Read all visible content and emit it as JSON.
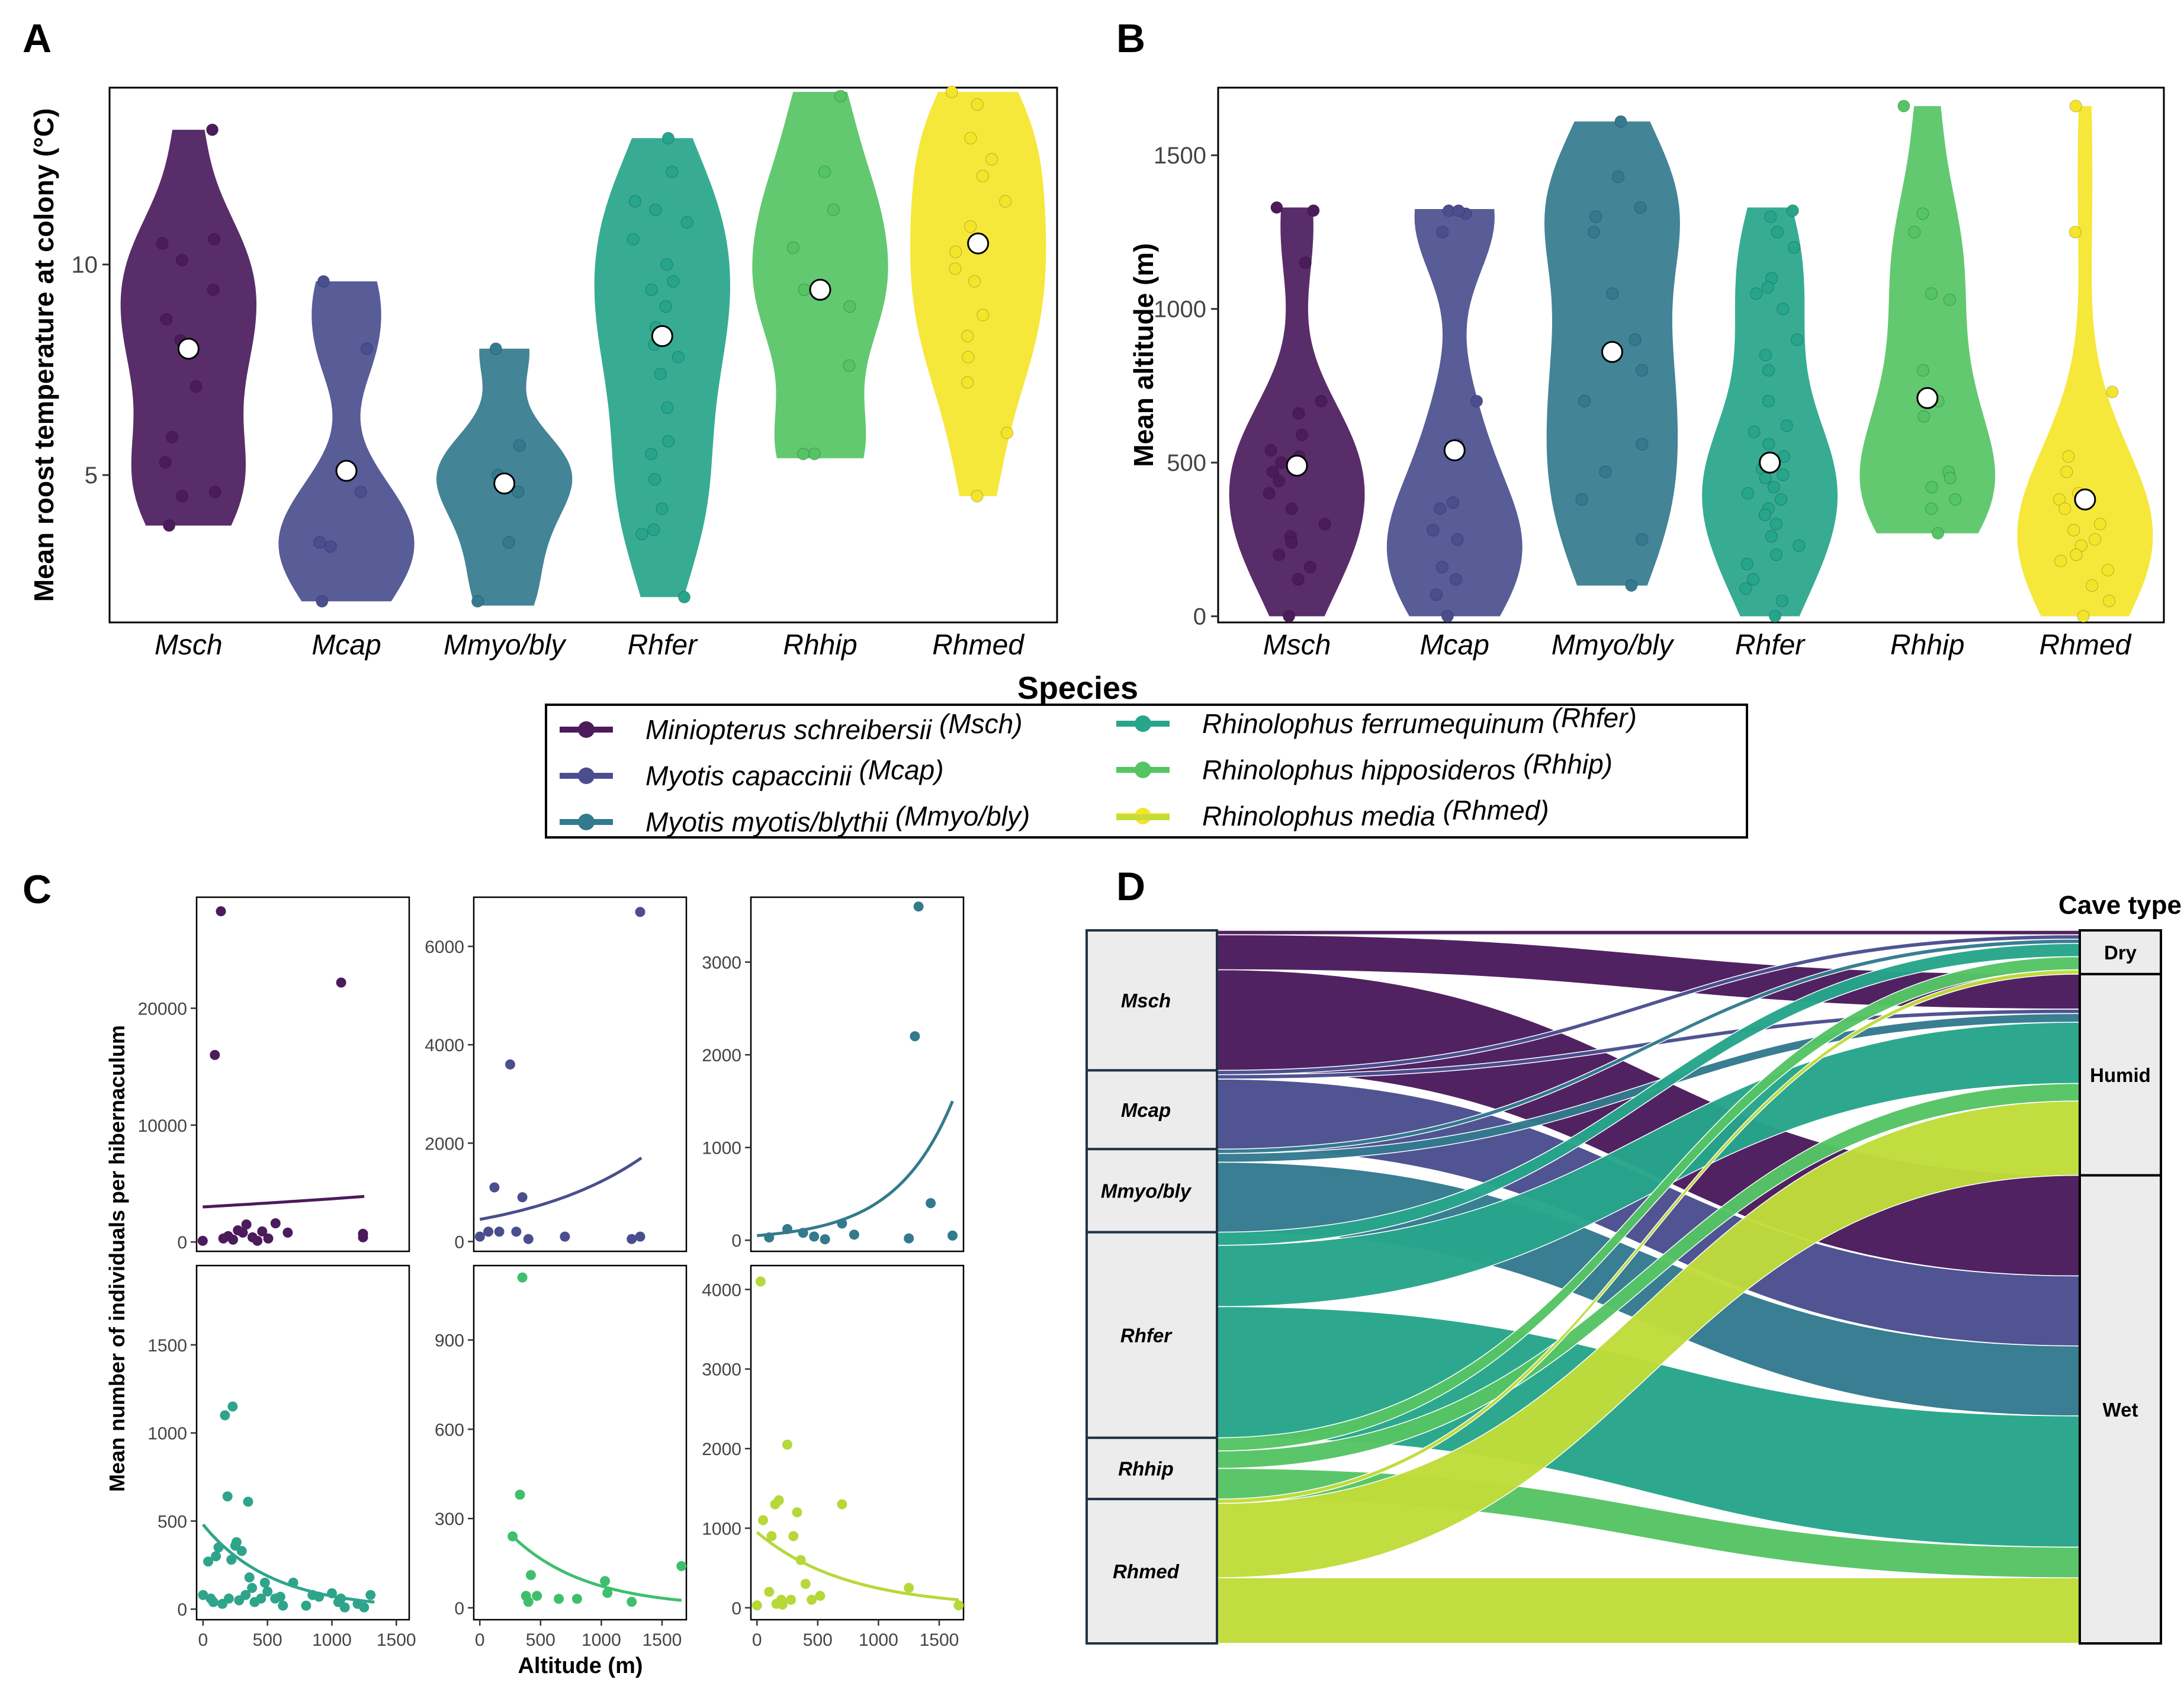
{
  "species": [
    {
      "code": "Msch",
      "full": "Miniopterus schreibersii",
      "legend_code": "(Msch)",
      "color": "#4b1b5c"
    },
    {
      "code": "Mcap",
      "full": "Myotis capaccinii",
      "legend_code": "(Mcap)",
      "color": "#4a4e8e"
    },
    {
      "code": "Mmyo/bly",
      "full": "Myotis myotis/blythii",
      "legend_code": "(Mmyo/bly)",
      "color": "#337a8e"
    },
    {
      "code": "Rhfer",
      "full": "Rhinolophus ferrumequinum",
      "legend_code": "(Rhfer)",
      "color": "#26a58a"
    },
    {
      "code": "Rhhip",
      "full": "Rhinolophus hipposideros",
      "legend_code": "(Rhhip)",
      "color": "#55c464"
    },
    {
      "code": "Rhmed",
      "full": "Rhinolophus media",
      "legend_code": "(Rhmed)",
      "color": "#f5e52a"
    }
  ],
  "legend": {
    "title": "Species"
  },
  "panel_labels": {
    "a": "A",
    "b": "B",
    "c": "C",
    "d": "D"
  },
  "chart_data": [
    {
      "id": "A",
      "type": "violin",
      "ylabel": "Mean roost temperature at colony (°C)",
      "xlabel": "",
      "ylim": [
        1.5,
        14.2
      ],
      "yticks": [
        5,
        10
      ],
      "categories": [
        "Msch",
        "Mcap",
        "Mmyo/bly",
        "Rhfer",
        "Rhhip",
        "Rhmed"
      ],
      "ranges": [
        [
          3.8,
          13.2
        ],
        [
          2.0,
          9.6
        ],
        [
          1.9,
          8.0
        ],
        [
          2.1,
          13.0
        ],
        [
          5.4,
          14.1
        ],
        [
          4.5,
          14.1
        ]
      ],
      "means": [
        8.0,
        5.1,
        4.8,
        8.3,
        9.4,
        10.5
      ],
      "points": [
        [
          13.2,
          10.6,
          10.5,
          10.1,
          9.4,
          8.7,
          8.2,
          8.0,
          7.1,
          5.9,
          5.3,
          4.6,
          4.5,
          3.8
        ],
        [
          9.6,
          8.0,
          4.6,
          3.4,
          3.3,
          2.0
        ],
        [
          8.0,
          5.7,
          5.0,
          4.6,
          3.4,
          2.0
        ],
        [
          13.0,
          12.2,
          11.5,
          11.3,
          11.0,
          10.6,
          10.0,
          9.6,
          9.4,
          9.0,
          8.5,
          8.1,
          7.8,
          7.4,
          6.6,
          5.8,
          5.5,
          4.9,
          4.2,
          3.7,
          3.6,
          2.1
        ],
        [
          14.0,
          12.2,
          11.3,
          10.4,
          9.4,
          9.0,
          7.6,
          5.5,
          5.5
        ],
        [
          14.1,
          13.8,
          13.0,
          12.5,
          12.1,
          11.5,
          10.9,
          10.3,
          9.9,
          9.6,
          8.8,
          8.3,
          7.8,
          7.2,
          6.0,
          4.5
        ]
      ]
    },
    {
      "id": "B",
      "type": "violin",
      "ylabel": "Mean altitude (m)",
      "xlabel": "",
      "ylim": [
        -20,
        1720
      ],
      "yticks": [
        0,
        500,
        1000,
        1500
      ],
      "categories": [
        "Msch",
        "Mcap",
        "Mmyo/bly",
        "Rhfer",
        "Rhhip",
        "Rhmed"
      ],
      "ranges": [
        [
          0,
          1330
        ],
        [
          0,
          1325
        ],
        [
          100,
          1610
        ],
        [
          0,
          1330
        ],
        [
          270,
          1660
        ],
        [
          0,
          1660
        ]
      ],
      "means": [
        490,
        540,
        860,
        500,
        710,
        380
      ],
      "points": [
        [
          1330,
          1320,
          1150,
          700,
          660,
          590,
          540,
          520,
          500,
          470,
          440,
          400,
          350,
          300,
          260,
          240,
          200,
          160,
          120,
          0
        ],
        [
          1320,
          1310,
          1250,
          1320,
          700,
          560,
          370,
          350,
          280,
          250,
          160,
          120,
          70,
          0
        ],
        [
          1610,
          1430,
          1330,
          1300,
          1250,
          1050,
          900,
          800,
          700,
          560,
          470,
          380,
          250,
          100
        ],
        [
          1320,
          1300,
          1250,
          1200,
          1100,
          1070,
          1050,
          1000,
          900,
          850,
          800,
          700,
          620,
          600,
          560,
          520,
          500,
          480,
          460,
          450,
          420,
          400,
          380,
          350,
          330,
          300,
          260,
          230,
          200,
          170,
          120,
          90,
          50,
          0
        ],
        [
          1660,
          1310,
          1250,
          1050,
          1030,
          800,
          700,
          650,
          470,
          450,
          420,
          380,
          350,
          270
        ],
        [
          1660,
          1250,
          730,
          520,
          470,
          400,
          380,
          350,
          300,
          280,
          250,
          230,
          200,
          180,
          150,
          100,
          50,
          0
        ]
      ]
    },
    {
      "id": "C",
      "type": "scatter",
      "xlabel": "Altitude (m)",
      "ylabel": "Mean number of individuals per hibernaculum",
      "panels": [
        {
          "species": "Msch",
          "xlim": [
            -50,
            1700
          ],
          "ylim": [
            -800,
            29500
          ],
          "yticks": [
            0,
            10000,
            20000
          ],
          "ytick_labels": [
            "0",
            "10000",
            "20000"
          ],
          "x": [
            0,
            100,
            150,
            170,
            210,
            250,
            290,
            330,
            360,
            410,
            450,
            490,
            540,
            600,
            700,
            1140,
            1320,
            1320
          ],
          "y": [
            100,
            16000,
            28300,
            300,
            500,
            200,
            1000,
            800,
            1500,
            400,
            100,
            900,
            300,
            1600,
            800,
            22200,
            700,
            400
          ],
          "fit": {
            "x": [
              0,
              1330
            ],
            "y": [
              3000,
              3900
            ]
          }
        },
        {
          "species": "Mcap",
          "xlim": [
            -50,
            1700
          ],
          "ylim": [
            -200,
            7000
          ],
          "yticks": [
            0,
            2000,
            4000,
            6000
          ],
          "ytick_labels": [
            "0",
            "2000",
            "4000",
            "6000"
          ],
          "x": [
            0,
            70,
            120,
            160,
            250,
            300,
            350,
            400,
            700,
            1250,
            1320,
            1320
          ],
          "y": [
            100,
            200,
            1100,
            200,
            3600,
            200,
            900,
            50,
            100,
            50,
            100,
            6700
          ],
          "fit": {
            "x": [
              0,
              1330
            ],
            "y": [
              450,
              1700
            ]
          }
        },
        {
          "species": "Mmyo/bly",
          "xlim": [
            -50,
            1700
          ],
          "ylim": [
            -120,
            3700
          ],
          "yticks": [
            0,
            1000,
            2000,
            3000
          ],
          "ytick_labels": [
            "0",
            "1000",
            "2000",
            "3000"
          ],
          "x": [
            100,
            250,
            380,
            470,
            560,
            700,
            800,
            1250,
            1300,
            1330,
            1430,
            1610
          ],
          "y": [
            30,
            120,
            80,
            40,
            10,
            180,
            60,
            20,
            2200,
            3600,
            400,
            50
          ],
          "fit": {
            "x": [
              0,
              1610
            ],
            "y": [
              50,
              1500
            ]
          }
        },
        {
          "species": "Rhfer",
          "xlim": [
            -50,
            1600
          ],
          "ylim": [
            -60,
            1950
          ],
          "yticks": [
            0,
            500,
            1000,
            1500
          ],
          "ytick_labels": [
            "0",
            "500",
            "1000",
            "1500"
          ],
          "x": [
            0,
            40,
            60,
            80,
            100,
            120,
            150,
            170,
            190,
            200,
            220,
            230,
            250,
            260,
            280,
            300,
            330,
            350,
            360,
            380,
            400,
            450,
            480,
            500,
            560,
            600,
            620,
            700,
            800,
            850,
            900,
            1000,
            1050,
            1070,
            1100,
            1200,
            1250,
            1300
          ],
          "y": [
            80,
            270,
            60,
            40,
            300,
            350,
            30,
            1100,
            640,
            60,
            280,
            1150,
            360,
            380,
            50,
            330,
            80,
            610,
            180,
            120,
            40,
            60,
            150,
            100,
            60,
            70,
            20,
            150,
            20,
            80,
            70,
            90,
            40,
            60,
            10,
            30,
            10,
            80
          ],
          "fit": {
            "x": [
              0,
              1330
            ],
            "y": [
              480,
              40
            ]
          }
        },
        {
          "species": "Rhhip",
          "xlim": [
            -50,
            1700
          ],
          "ylim": [
            -40,
            1150
          ],
          "yticks": [
            0,
            300,
            600,
            900
          ],
          "ytick_labels": [
            "0",
            "300",
            "600",
            "900"
          ],
          "x": [
            270,
            330,
            350,
            380,
            400,
            420,
            470,
            650,
            800,
            1030,
            1050,
            1250,
            1660
          ],
          "y": [
            240,
            380,
            1110,
            40,
            20,
            110,
            40,
            30,
            30,
            90,
            50,
            20,
            140
          ],
          "fit": {
            "x": [
              270,
              1660
            ],
            "y": [
              240,
              25
            ]
          }
        },
        {
          "species": "Rhmed",
          "xlim": [
            -50,
            1700
          ],
          "ylim": [
            -150,
            4300
          ],
          "yticks": [
            0,
            1000,
            2000,
            3000,
            4000
          ],
          "ytick_labels": [
            "0",
            "1000",
            "2000",
            "3000",
            "4000"
          ],
          "x": [
            0,
            30,
            50,
            100,
            120,
            150,
            160,
            180,
            200,
            210,
            250,
            280,
            300,
            330,
            360,
            400,
            450,
            520,
            700,
            1250,
            1660
          ],
          "y": [
            30,
            4100,
            1100,
            200,
            900,
            1300,
            50,
            1350,
            100,
            40,
            2050,
            100,
            900,
            1200,
            600,
            300,
            100,
            150,
            1300,
            250,
            30
          ],
          "fit": {
            "x": [
              0,
              1660
            ],
            "y": [
              950,
              100
            ]
          }
        }
      ],
      "xticks": [
        0,
        500,
        1000,
        1500
      ]
    },
    {
      "id": "D",
      "type": "alluvial",
      "title": "Cave type",
      "left_nodes": [
        "Msch",
        "Mcap",
        "Mmyo/bly",
        "Rhfer",
        "Rhhip",
        "Rhmed"
      ],
      "right_nodes": [
        "Dry",
        "Humid",
        "Wet"
      ],
      "flows": [
        {
          "from": "Msch",
          "to": "Dry",
          "value": 1
        },
        {
          "from": "Msch",
          "to": "Humid",
          "value": 8
        },
        {
          "from": "Msch",
          "to": "Wet",
          "value": 23
        },
        {
          "from": "Mcap",
          "to": "Dry",
          "value": 1
        },
        {
          "from": "Mcap",
          "to": "Humid",
          "value": 1
        },
        {
          "from": "Mcap",
          "to": "Wet",
          "value": 16
        },
        {
          "from": "Mmyo/bly",
          "to": "Dry",
          "value": 1
        },
        {
          "from": "Mmyo/bly",
          "to": "Humid",
          "value": 2
        },
        {
          "from": "Mmyo/bly",
          "to": "Wet",
          "value": 16
        },
        {
          "from": "Rhfer",
          "to": "Dry",
          "value": 3
        },
        {
          "from": "Rhfer",
          "to": "Humid",
          "value": 14
        },
        {
          "from": "Rhfer",
          "to": "Wet",
          "value": 30
        },
        {
          "from": "Rhhip",
          "to": "Dry",
          "value": 3
        },
        {
          "from": "Rhhip",
          "to": "Humid",
          "value": 4
        },
        {
          "from": "Rhhip",
          "to": "Wet",
          "value": 7
        },
        {
          "from": "Rhmed",
          "to": "Dry",
          "value": 1
        },
        {
          "from": "Rhmed",
          "to": "Humid",
          "value": 17
        },
        {
          "from": "Rhmed",
          "to": "Wet",
          "value": 15
        }
      ]
    }
  ]
}
